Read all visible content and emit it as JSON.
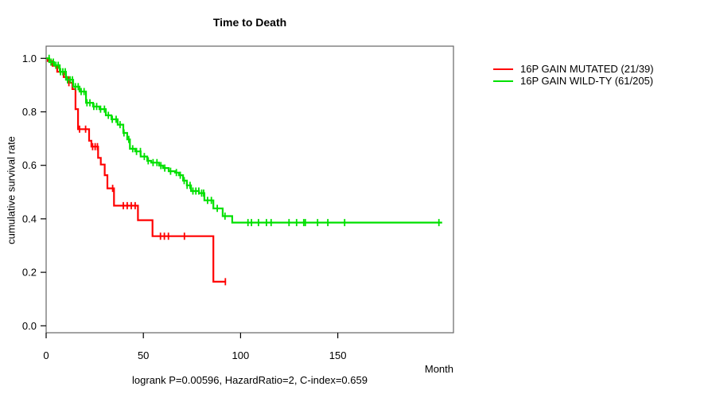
{
  "title": "Time to Death",
  "caption": "logrank P=0.00596, HazardRatio=2, C-index=0.659",
  "axes": {
    "x_label": "Month",
    "y_label": "cumulative survival rate",
    "x_ticks": [
      0,
      50,
      100,
      150
    ],
    "y_ticks": [
      1.0,
      0.8,
      0.6,
      0.4,
      0.2,
      0.0
    ]
  },
  "legend": {
    "items": [
      {
        "label": "16P GAIN MUTATED (21/39)",
        "color": "#ff0000"
      },
      {
        "label": "16P GAIN WILD-TY (61/205)",
        "color": "#00e000"
      }
    ]
  },
  "chart_data": {
    "type": "line",
    "subtype": "kaplan_meier_step",
    "title": "Time to Death",
    "xlabel": "Month",
    "ylabel": "cumulative survival rate",
    "xlim": [
      0,
      209
    ],
    "ylim": [
      0,
      1.04
    ],
    "grid": false,
    "legend_position": "outside-top-right",
    "annotation": "logrank P=0.00596, HazardRatio=2, C-index=0.659",
    "series": [
      {
        "name": "16P GAIN MUTATED (21/39)",
        "color": "#ff0000",
        "events_over_n": "21/39",
        "steps": [
          [
            0,
            1.0
          ],
          [
            0.8,
            0.99
          ],
          [
            3.3,
            0.972
          ],
          [
            5.7,
            0.95
          ],
          [
            9,
            0.93
          ],
          [
            11.5,
            0.909
          ],
          [
            13.5,
            0.885
          ],
          [
            15.1,
            0.81
          ],
          [
            16.4,
            0.735
          ],
          [
            22.1,
            0.692
          ],
          [
            23.3,
            0.67
          ],
          [
            26.7,
            0.628
          ],
          [
            28.1,
            0.603
          ],
          [
            30.1,
            0.563
          ],
          [
            31.5,
            0.514
          ],
          [
            34.9,
            0.449
          ],
          [
            47.2,
            0.395
          ],
          [
            54.7,
            0.335
          ],
          [
            86,
            0.165
          ]
        ],
        "end_month": 92.5,
        "censor_months": [
          11.7,
          17.2,
          20.3,
          23.9,
          25.2,
          26.4,
          34.2,
          39.7,
          41.7,
          43.8,
          45.8,
          58.8,
          60.8,
          62.9,
          71.1,
          92.2
        ]
      },
      {
        "name": "16P GAIN WILD-TY (61/205)",
        "color": "#00e000",
        "events_over_n": "61/205",
        "steps": [
          [
            0,
            1.0
          ],
          [
            1.6,
            0.986
          ],
          [
            4.1,
            0.974
          ],
          [
            7,
            0.95
          ],
          [
            10.2,
            0.92
          ],
          [
            13.9,
            0.894
          ],
          [
            17.2,
            0.876
          ],
          [
            20.5,
            0.834
          ],
          [
            24.1,
            0.82
          ],
          [
            27.4,
            0.81
          ],
          [
            30.7,
            0.787
          ],
          [
            33.6,
            0.772
          ],
          [
            36.8,
            0.752
          ],
          [
            39.7,
            0.721
          ],
          [
            41.7,
            0.697
          ],
          [
            43.1,
            0.662
          ],
          [
            45.8,
            0.652
          ],
          [
            48.6,
            0.633
          ],
          [
            52,
            0.617
          ],
          [
            54,
            0.61
          ],
          [
            58.1,
            0.599
          ],
          [
            60.1,
            0.59
          ],
          [
            63,
            0.578
          ],
          [
            66.3,
            0.573
          ],
          [
            68.3,
            0.563
          ],
          [
            70.4,
            0.543
          ],
          [
            72.4,
            0.525
          ],
          [
            74.5,
            0.504
          ],
          [
            78.6,
            0.496
          ],
          [
            81.4,
            0.469
          ],
          [
            86,
            0.439
          ],
          [
            90.8,
            0.41
          ],
          [
            95.7,
            0.386
          ]
        ],
        "end_month": 203.7,
        "censor_months": [
          1.5,
          2.5,
          3.7,
          5,
          6.2,
          7.4,
          8.6,
          9.8,
          11,
          12.3,
          13.5,
          15,
          16.5,
          18,
          19.5,
          21,
          22.5,
          24.5,
          26,
          28,
          30,
          32,
          34,
          36,
          38,
          40,
          42.5,
          44.5,
          46.5,
          48.5,
          50.5,
          52.5,
          55,
          57,
          59,
          61,
          64,
          67,
          69,
          71,
          72.5,
          74,
          75.5,
          77,
          78.5,
          80,
          81,
          83,
          85,
          88,
          92,
          103.8,
          105.6,
          109.2,
          113.3,
          115.7,
          124.9,
          128.8,
          132.5,
          133.3,
          139.6,
          144.9,
          153.5,
          202
        ]
      }
    ]
  }
}
